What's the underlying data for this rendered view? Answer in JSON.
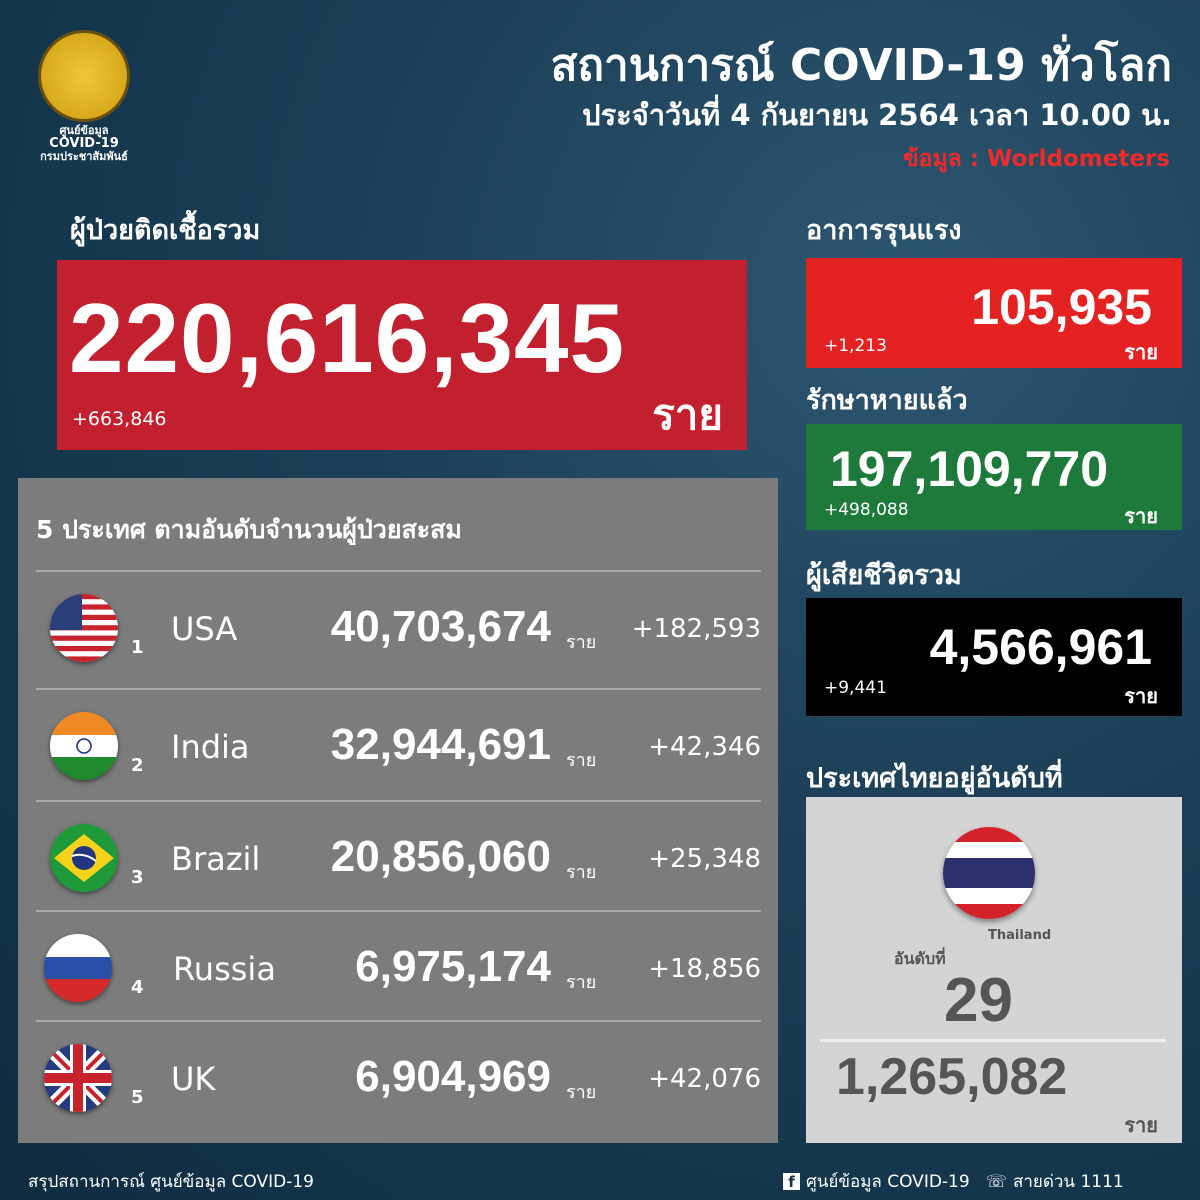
{
  "header": {
    "title": "สถานการณ์ COVID-19 ทั่วโลก",
    "subtitle": "ประจำวันที่ 4 กันยายน 2564 เวลา 10.00 น.",
    "source": "ข้อมูล : Worldometers"
  },
  "logo": {
    "line1": "ศูนย์ข้อมูล",
    "line2": "COVID-19",
    "line3": "กรมประชาสัมพันธ์"
  },
  "total": {
    "label": "ผู้ป่วยติดเชื้อรวม",
    "value": "220,616,345",
    "change": "+663,846",
    "unit": "ราย",
    "color": "#c3202f"
  },
  "severe": {
    "label": "อาการรุนแรง",
    "value": "105,935",
    "change": "+1,213",
    "unit": "ราย",
    "color": "#e52222"
  },
  "recovered": {
    "label": "รักษาหายแล้ว",
    "value": "197,109,770",
    "change": "+498,088",
    "unit": "ราย",
    "color": "#1d7a3b"
  },
  "deaths": {
    "label": "ผู้เสียชีวิตรวม",
    "value": "4,566,961",
    "change": "+9,441",
    "unit": "ราย",
    "color": "#000000"
  },
  "top5": {
    "title": "5 ประเทศ ตามอันดับจำนวนผู้ป่วยสะสม",
    "unit": "ราย",
    "rows": [
      {
        "rank": "1",
        "country": "USA",
        "value": "40,703,674",
        "change": "+182,593",
        "flag": "usa-flag"
      },
      {
        "rank": "2",
        "country": "India",
        "value": "32,944,691",
        "change": "+42,346",
        "flag": "india-flag"
      },
      {
        "rank": "3",
        "country": "Brazil",
        "value": "20,856,060",
        "change": "+25,348",
        "flag": "brazil-flag"
      },
      {
        "rank": "4",
        "country": "Russia",
        "value": "6,975,174",
        "change": "+18,856",
        "flag": "russia-flag"
      },
      {
        "rank": "5",
        "country": "UK",
        "value": "6,904,969",
        "change": "+42,076",
        "flag": "uk-flag"
      }
    ]
  },
  "thailand": {
    "label": "ประเทศไทยอยู่อันดับที่",
    "country": "Thailand",
    "rank_label": "อันดับที่",
    "rank": "29",
    "value": "1,265,082",
    "unit": "ราย"
  },
  "footer": {
    "left": "สรุปสถานการณ์ ศูนย์ข้อมูล COVID-19",
    "facebook": "ศูนย์ข้อมูล COVID-19",
    "hotline": "สายด่วน 1111"
  }
}
